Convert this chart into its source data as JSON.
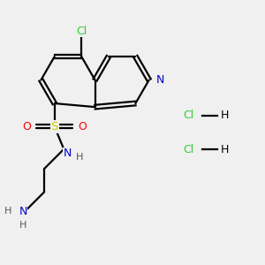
{
  "bg_color": "#f0f0f0",
  "atom_colors": {
    "C": "#000000",
    "N": "#0000cc",
    "O": "#ff0000",
    "S": "#cccc00",
    "Cl": "#33cc33",
    "H": "#000000"
  },
  "bond_color": "#000000",
  "bl": 0.72,
  "lw": 1.6,
  "dbl_off": 0.055,
  "fs": 9.0,
  "xlim": [
    0.5,
    7.5
  ],
  "ylim": [
    1.8,
    8.5
  ],
  "hcl1": [
    5.5,
    5.6
  ],
  "hcl2": [
    5.5,
    4.7
  ]
}
